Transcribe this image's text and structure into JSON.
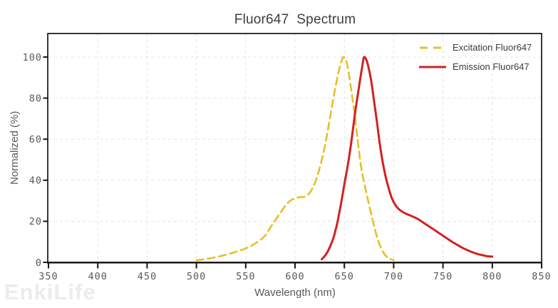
{
  "title": "Fluor647  Spectrum",
  "watermark": "EnkiLife",
  "colors": {
    "excitation": "#e8be28",
    "emission": "#d42020",
    "grid": "#e4e4e4",
    "axis": "#141414",
    "tick_label": "#595959",
    "axis_title": "#595959",
    "title_text": "#3d3d3d",
    "legend_text": "#3a3a3a",
    "watermark": "#ececec"
  },
  "chart_data": {
    "type": "line",
    "title": "Fluor647  Spectrum",
    "xlabel": "Wavelength (nm)",
    "ylabel": "Normalized (%)",
    "xlim": [
      350,
      850
    ],
    "ylim": [
      0,
      100
    ],
    "x_ticks": [
      350,
      400,
      450,
      500,
      550,
      600,
      650,
      700,
      750,
      800,
      850
    ],
    "y_ticks": [
      0,
      20,
      40,
      60,
      80,
      100
    ],
    "grid": true,
    "legend_position": "top-right",
    "series": [
      {
        "name": "Excitation Fluor647",
        "style": "dashed",
        "color": "#e8be28",
        "points": [
          [
            500,
            1
          ],
          [
            505,
            1.3
          ],
          [
            510,
            1.7
          ],
          [
            515,
            2.1
          ],
          [
            520,
            2.6
          ],
          [
            525,
            3.1
          ],
          [
            530,
            3.7
          ],
          [
            535,
            4.4
          ],
          [
            540,
            5.1
          ],
          [
            545,
            5.9
          ],
          [
            550,
            6.8
          ],
          [
            555,
            7.9
          ],
          [
            560,
            9.3
          ],
          [
            565,
            11
          ],
          [
            570,
            13.2
          ],
          [
            575,
            17
          ],
          [
            580,
            20.5
          ],
          [
            585,
            24
          ],
          [
            590,
            27.5
          ],
          [
            595,
            30
          ],
          [
            600,
            31.2
          ],
          [
            605,
            31.8
          ],
          [
            610,
            32
          ],
          [
            615,
            34
          ],
          [
            620,
            38.5
          ],
          [
            625,
            46
          ],
          [
            630,
            56
          ],
          [
            635,
            69
          ],
          [
            640,
            83
          ],
          [
            645,
            94.5
          ],
          [
            647,
            97.8
          ],
          [
            649,
            100
          ],
          [
            652,
            98
          ],
          [
            655,
            90.5
          ],
          [
            658,
            80.5
          ],
          [
            661,
            70
          ],
          [
            664,
            57.5
          ],
          [
            667,
            46.5
          ],
          [
            670,
            39
          ],
          [
            673,
            32.5
          ],
          [
            676,
            26
          ],
          [
            680,
            18
          ],
          [
            684,
            11
          ],
          [
            688,
            6.2
          ],
          [
            692,
            3.2
          ],
          [
            696,
            1.8
          ],
          [
            700,
            1
          ]
        ]
      },
      {
        "name": "Emission Fluor647",
        "style": "solid",
        "color": "#d42020",
        "points": [
          [
            627,
            1.5
          ],
          [
            630,
            3
          ],
          [
            633,
            5.2
          ],
          [
            636,
            8.2
          ],
          [
            639,
            12
          ],
          [
            641,
            15.5
          ],
          [
            643,
            19.5
          ],
          [
            645,
            24.5
          ],
          [
            647,
            29.5
          ],
          [
            650,
            38
          ],
          [
            653,
            46
          ],
          [
            656,
            55
          ],
          [
            659,
            66
          ],
          [
            662,
            76.5
          ],
          [
            665,
            86
          ],
          [
            667,
            92
          ],
          [
            669,
            98
          ],
          [
            670,
            100
          ],
          [
            672,
            99
          ],
          [
            674,
            96
          ],
          [
            677,
            89
          ],
          [
            680,
            79
          ],
          [
            683,
            68.5
          ],
          [
            686,
            57.5
          ],
          [
            689,
            48.5
          ],
          [
            692,
            41.5
          ],
          [
            695,
            36
          ],
          [
            698,
            31.5
          ],
          [
            701,
            28.5
          ],
          [
            705,
            26
          ],
          [
            710,
            24.3
          ],
          [
            715,
            23.2
          ],
          [
            720,
            22.2
          ],
          [
            725,
            21
          ],
          [
            730,
            19.4
          ],
          [
            735,
            17.8
          ],
          [
            740,
            16.2
          ],
          [
            745,
            14.6
          ],
          [
            750,
            13
          ],
          [
            755,
            11.4
          ],
          [
            760,
            9.8
          ],
          [
            765,
            8.4
          ],
          [
            770,
            7
          ],
          [
            775,
            5.9
          ],
          [
            780,
            4.9
          ],
          [
            785,
            4.1
          ],
          [
            790,
            3.5
          ],
          [
            795,
            3
          ],
          [
            800,
            2.8
          ]
        ]
      }
    ]
  }
}
